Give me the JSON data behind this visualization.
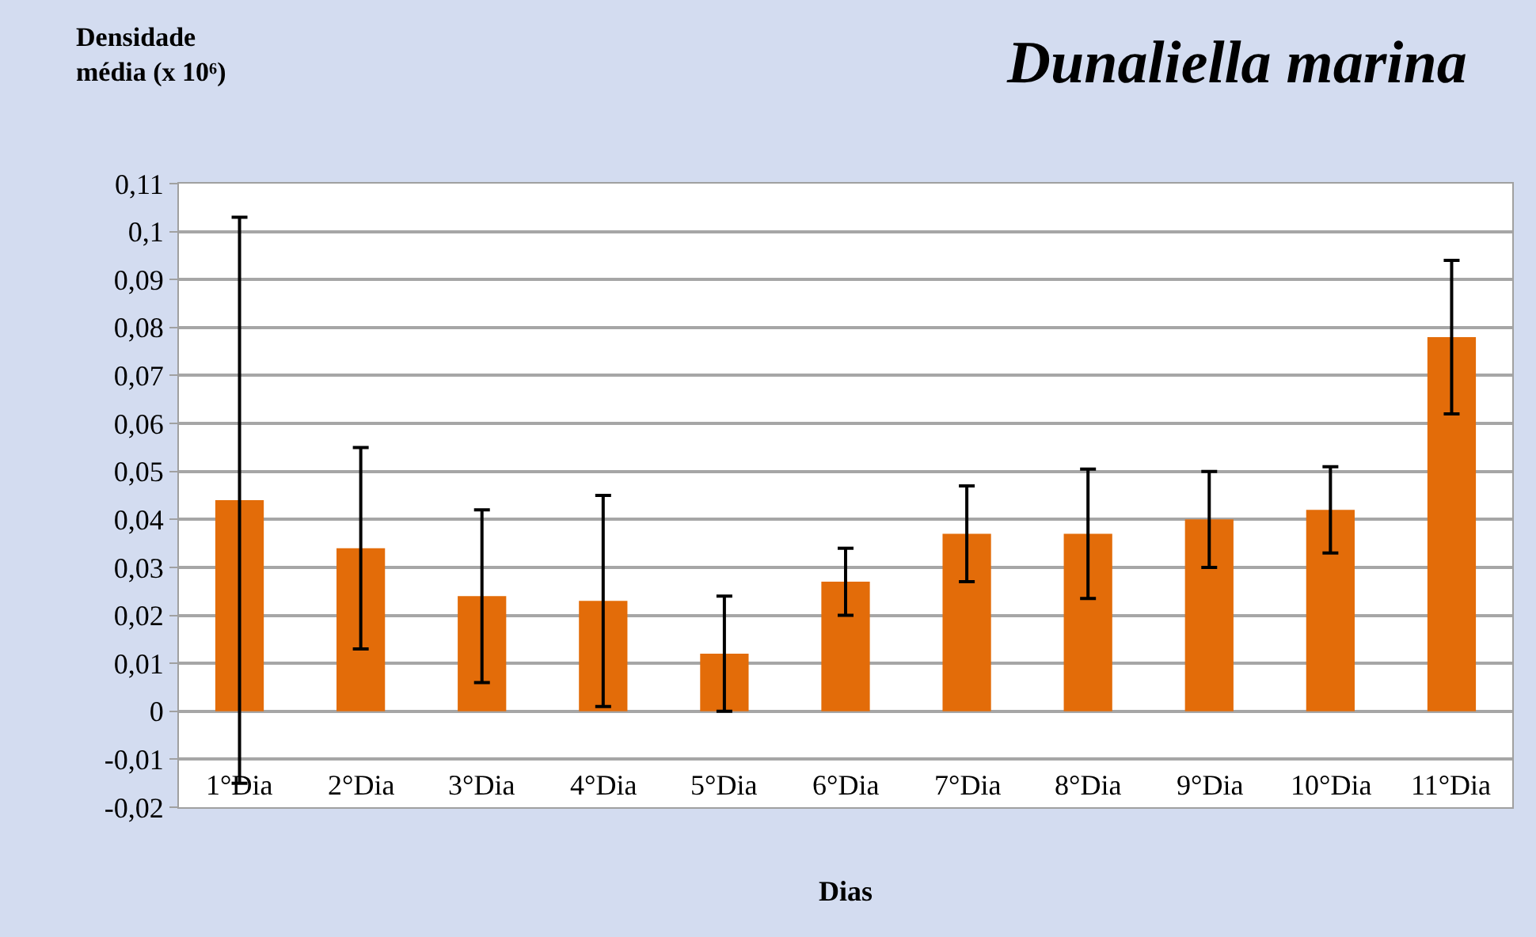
{
  "chart_data": {
    "type": "bar",
    "title": "Dunaliella marina",
    "ylabel": "Densidade média (x 10⁶)",
    "xlabel": "Dias",
    "categories": [
      "1°Dia",
      "2°Dia",
      "3°Dia",
      "4°Dia",
      "5°Dia",
      "6°Dia",
      "7°Dia",
      "8°Dia",
      "9°Dia",
      "10°Dia",
      "11°Dia"
    ],
    "values": [
      0.044,
      0.034,
      0.024,
      0.023,
      0.012,
      0.027,
      0.037,
      0.037,
      0.04,
      0.042,
      0.078
    ],
    "errors": [
      0.059,
      0.021,
      0.018,
      0.022,
      0.012,
      0.007,
      0.01,
      0.0135,
      0.01,
      0.009,
      0.016
    ],
    "color": "#e36c09",
    "ylim": [
      -0.02,
      0.11
    ],
    "yticks": [
      {
        "value": -0.02,
        "label": "-0,02"
      },
      {
        "value": -0.01,
        "label": "-0,01"
      },
      0,
      {
        "value": 0.01,
        "label": "0,01"
      },
      {
        "value": 0.02,
        "label": "0,02"
      },
      {
        "value": 0.03,
        "label": "0,03"
      },
      {
        "value": 0.04,
        "label": "0,04"
      },
      {
        "value": 0.05,
        "label": "0,05"
      },
      {
        "value": 0.06,
        "label": "0,06"
      },
      {
        "value": 0.07,
        "label": "0,07"
      },
      {
        "value": 0.08,
        "label": "0,08"
      },
      {
        "value": 0.09,
        "label": "0,09"
      },
      {
        "value": 0.1,
        "label": "0,1"
      },
      {
        "value": 0.11,
        "label": "0,11"
      }
    ],
    "grid": "y"
  }
}
